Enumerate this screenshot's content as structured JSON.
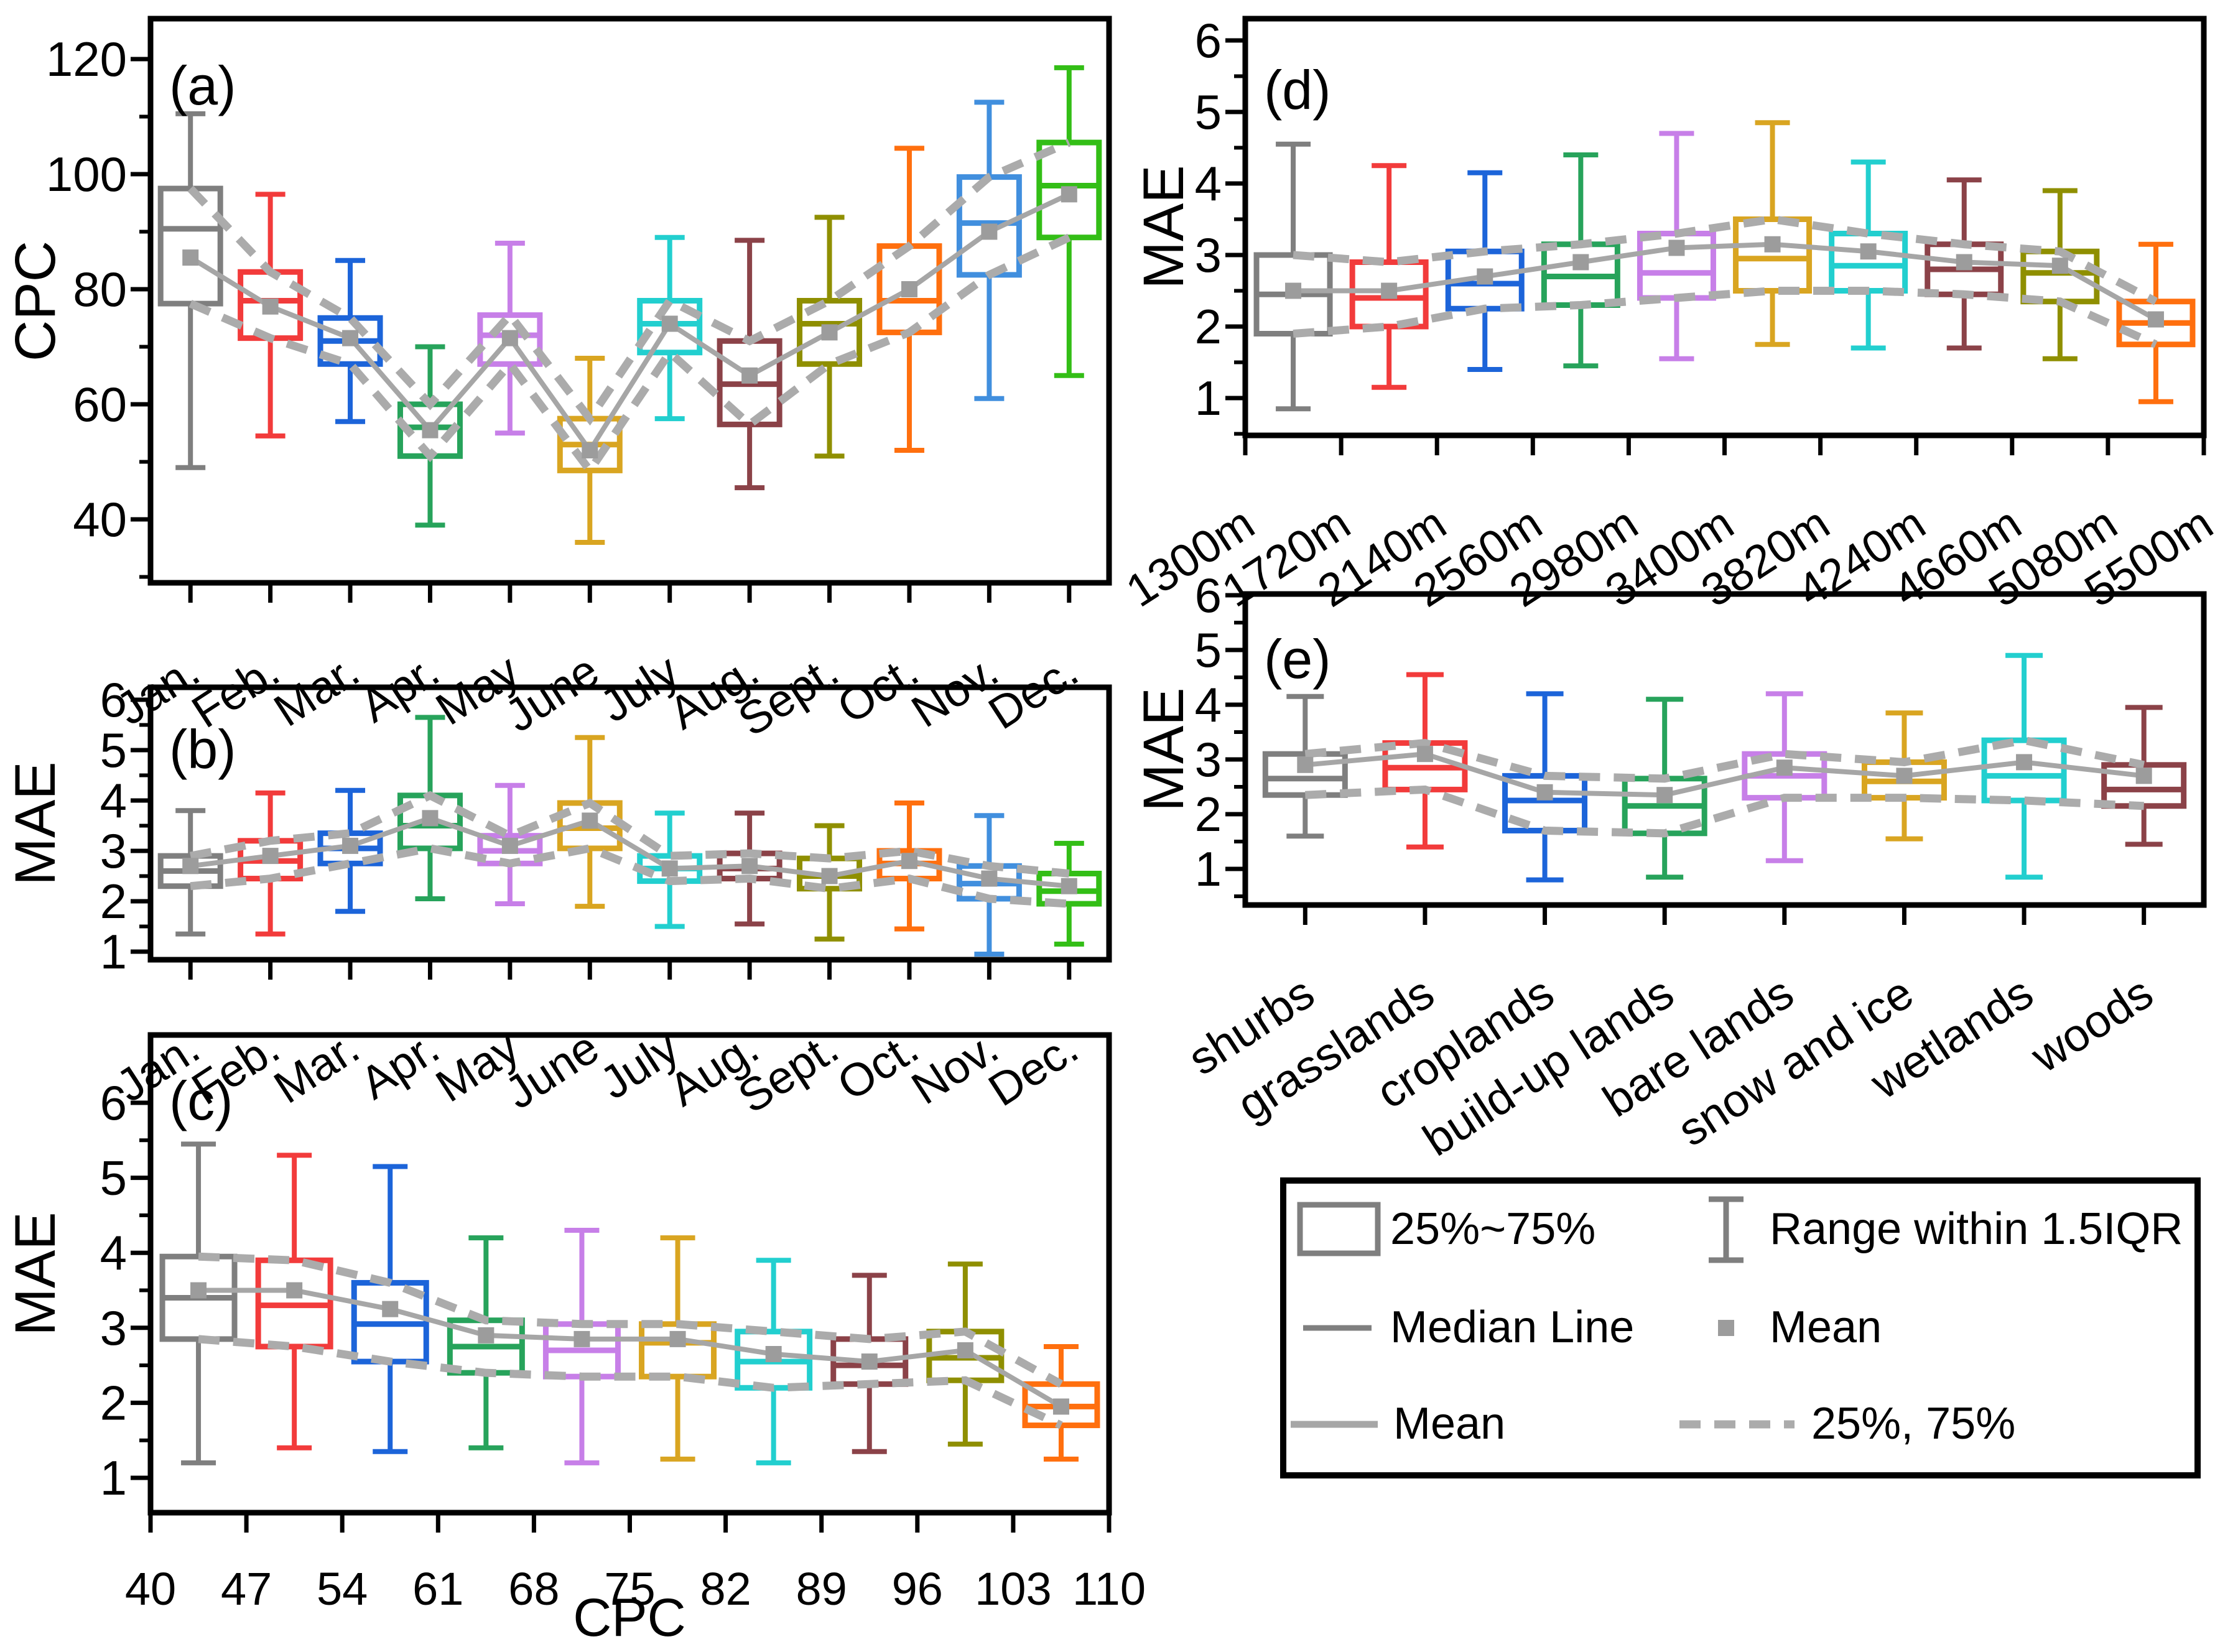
{
  "figure": {
    "panels": [
      "(a)",
      "(b)",
      "(c)",
      "(d)",
      "(e)"
    ],
    "overlay_colors": {
      "mean_line": "#A6A6A6",
      "quartile_dashed": "#ABABAB",
      "mean_marker": "#9C9C9C",
      "median_legend": "#7F7F7F",
      "whisker_legend": "#7F7F7F",
      "box_legend": "#7F7F7F"
    }
  },
  "legend": {
    "items": [
      {
        "symbol": "box",
        "label": "25%~75%"
      },
      {
        "symbol": "range-whisker",
        "label": "Range within 1.5IQR"
      },
      {
        "symbol": "median-line",
        "label": "Median Line"
      },
      {
        "symbol": "mean-marker",
        "label": "Mean"
      },
      {
        "symbol": "mean-line",
        "label": "Mean"
      },
      {
        "symbol": "quartile-dashed",
        "label": "25%, 75%"
      }
    ]
  },
  "chart_data": [
    {
      "panel": "a",
      "type": "box",
      "title": "(a)",
      "ylabel": "CPC",
      "xlabel": "",
      "tick_mode": "center",
      "ylim": [
        29,
        127
      ],
      "yticks": [
        40,
        60,
        80,
        100,
        120
      ],
      "yminor": [
        30,
        50,
        70,
        90,
        110
      ],
      "categories": [
        "Jan.",
        "Feb.",
        "Mar.",
        "Apr.",
        "May",
        "June",
        "July",
        "Aug.",
        "Sept.",
        "Oct.",
        "Nov.",
        "Dec."
      ],
      "colors": [
        "#7F7F7F",
        "#F23B3B",
        "#1C64D9",
        "#27A35B",
        "#C77FE8",
        "#D9A521",
        "#22CFCF",
        "#8B4248",
        "#8F8F00",
        "#FF6F0E",
        "#418FDE",
        "#33BE16"
      ],
      "stats_format": [
        "whisker_low",
        "q1",
        "median",
        "mean",
        "q3",
        "whisker_high"
      ],
      "stats": [
        [
          49,
          77.5,
          90.5,
          85.5,
          97.5,
          110.5
        ],
        [
          54.5,
          71.5,
          78,
          77,
          83,
          96.5
        ],
        [
          57,
          67,
          71,
          71.5,
          75,
          85
        ],
        [
          39,
          51,
          56,
          55.5,
          60,
          70
        ],
        [
          55,
          67,
          72,
          71.5,
          75.5,
          88
        ],
        [
          36,
          48.5,
          53,
          52,
          57.5,
          68
        ],
        [
          57.5,
          69,
          74,
          74,
          78,
          89
        ],
        [
          45.5,
          56.5,
          63.5,
          65,
          71,
          88.5
        ],
        [
          51,
          67,
          74,
          72.5,
          78,
          92.5
        ],
        [
          52,
          72.5,
          78,
          80,
          87.5,
          104.5
        ],
        [
          61,
          82.5,
          91.5,
          90,
          99.5,
          112.5
        ],
        [
          65,
          89,
          98,
          96.5,
          105.5,
          118.5
        ]
      ]
    },
    {
      "panel": "b",
      "type": "box",
      "title": "(b)",
      "ylabel": "MAE",
      "xlabel": "",
      "tick_mode": "center",
      "ylim": [
        0.84,
        6.25
      ],
      "yticks": [
        1,
        2,
        3,
        4,
        5,
        6
      ],
      "yminor": [
        1.5,
        2.5,
        3.5,
        4.5,
        5.5
      ],
      "categories": [
        "Jan.",
        "Feb.",
        "Mar.",
        "Apr.",
        "May",
        "June",
        "July",
        "Aug.",
        "Sept.",
        "Oct.",
        "Nov.",
        "Dec."
      ],
      "colors": [
        "#7F7F7F",
        "#F23B3B",
        "#1C64D9",
        "#27A35B",
        "#C77FE8",
        "#D9A521",
        "#22CFCF",
        "#8B4248",
        "#8F8F00",
        "#FF6F0E",
        "#418FDE",
        "#33BE16"
      ],
      "stats_format": [
        "whisker_low",
        "q1",
        "median",
        "mean",
        "q3",
        "whisker_high"
      ],
      "stats": [
        [
          1.35,
          2.3,
          2.6,
          2.7,
          2.9,
          3.8
        ],
        [
          1.35,
          2.45,
          2.8,
          2.9,
          3.2,
          4.15
        ],
        [
          1.8,
          2.75,
          3.05,
          3.1,
          3.35,
          4.2
        ],
        [
          2.05,
          3.05,
          3.5,
          3.65,
          4.1,
          5.65
        ],
        [
          1.95,
          2.75,
          3.0,
          3.1,
          3.3,
          4.3
        ],
        [
          1.9,
          3.05,
          3.45,
          3.6,
          3.95,
          5.25
        ],
        [
          1.5,
          2.4,
          2.65,
          2.65,
          2.9,
          3.75
        ],
        [
          1.55,
          2.45,
          2.65,
          2.7,
          2.95,
          3.75
        ],
        [
          1.25,
          2.25,
          2.5,
          2.5,
          2.85,
          3.5
        ],
        [
          1.45,
          2.45,
          2.75,
          2.8,
          3.0,
          3.95
        ],
        [
          0.95,
          2.05,
          2.35,
          2.45,
          2.7,
          3.7
        ],
        [
          1.15,
          1.95,
          2.2,
          2.3,
          2.55,
          3.15
        ]
      ]
    },
    {
      "panel": "c",
      "type": "box",
      "title": "(c)",
      "ylabel": "MAE",
      "xlabel": "CPC",
      "tick_mode": "edge",
      "ylim": [
        0.54,
        6.9
      ],
      "yticks": [
        1,
        2,
        3,
        4,
        5,
        6
      ],
      "yminor": [
        1.5,
        2.5,
        3.5,
        4.5,
        5.5
      ],
      "categories": [
        "40",
        "47",
        "54",
        "61",
        "68",
        "75",
        "82",
        "89",
        "96",
        "103",
        "110"
      ],
      "colors": [
        "#7F7F7F",
        "#F23B3B",
        "#1C64D9",
        "#27A35B",
        "#C77FE8",
        "#D9A521",
        "#22CFCF",
        "#8B4248",
        "#8F8F00",
        "#FF6F0E"
      ],
      "stats_format": [
        "whisker_low",
        "q1",
        "median",
        "mean",
        "q3",
        "whisker_high"
      ],
      "stats": [
        [
          1.2,
          2.85,
          3.4,
          3.5,
          3.95,
          5.45
        ],
        [
          1.4,
          2.75,
          3.3,
          3.5,
          3.9,
          5.3
        ],
        [
          1.35,
          2.55,
          3.05,
          3.25,
          3.6,
          5.15
        ],
        [
          1.4,
          2.4,
          2.75,
          2.9,
          3.1,
          4.2
        ],
        [
          1.2,
          2.35,
          2.7,
          2.85,
          3.05,
          4.3
        ],
        [
          1.25,
          2.35,
          2.8,
          2.85,
          3.05,
          4.2
        ],
        [
          1.2,
          2.2,
          2.55,
          2.65,
          2.95,
          3.9
        ],
        [
          1.35,
          2.25,
          2.5,
          2.55,
          2.85,
          3.7
        ],
        [
          1.45,
          2.3,
          2.6,
          2.7,
          2.95,
          3.85
        ],
        [
          1.25,
          1.7,
          1.95,
          1.95,
          2.25,
          2.75
        ]
      ]
    },
    {
      "panel": "d",
      "type": "box",
      "title": "(d)",
      "ylabel": "MAE",
      "xlabel": "",
      "tick_mode": "edge",
      "ylim": [
        0.48,
        6.3
      ],
      "yticks": [
        1,
        2,
        3,
        4,
        5,
        6
      ],
      "yminor": [
        0.5,
        1.5,
        2.5,
        3.5,
        4.5,
        5.5
      ],
      "categories": [
        "1300m",
        "1720m",
        "2140m",
        "2560m",
        "2980m",
        "3400m",
        "3820m",
        "4240m",
        "4660m",
        "5080m",
        "5500m"
      ],
      "colors": [
        "#7F7F7F",
        "#F23B3B",
        "#1C64D9",
        "#27A35B",
        "#C77FE8",
        "#D9A521",
        "#22CFCF",
        "#8B4248",
        "#8F8F00",
        "#FF6F0E"
      ],
      "stats_format": [
        "whisker_low",
        "q1",
        "median",
        "mean",
        "q3",
        "whisker_high"
      ],
      "stats": [
        [
          0.85,
          1.9,
          2.45,
          2.5,
          3.0,
          4.55
        ],
        [
          1.15,
          2.0,
          2.4,
          2.5,
          2.9,
          4.25
        ],
        [
          1.4,
          2.25,
          2.6,
          2.7,
          3.05,
          4.15
        ],
        [
          1.45,
          2.3,
          2.7,
          2.9,
          3.15,
          4.4
        ],
        [
          1.55,
          2.4,
          2.75,
          3.1,
          3.3,
          4.7
        ],
        [
          1.75,
          2.5,
          2.95,
          3.15,
          3.5,
          4.85
        ],
        [
          1.7,
          2.5,
          2.85,
          3.05,
          3.3,
          4.3
        ],
        [
          1.7,
          2.45,
          2.8,
          2.9,
          3.15,
          4.05
        ],
        [
          1.55,
          2.35,
          2.75,
          2.85,
          3.05,
          3.9
        ],
        [
          0.95,
          1.75,
          2.05,
          2.1,
          2.35,
          3.15
        ]
      ]
    },
    {
      "panel": "e",
      "type": "box",
      "title": "(e)",
      "ylabel": "MAE",
      "xlabel": "",
      "tick_mode": "center",
      "ylim": [
        0.34,
        6.02
      ],
      "yticks": [
        1,
        2,
        3,
        4,
        5,
        6
      ],
      "yminor": [
        0.5,
        1.5,
        2.5,
        3.5,
        4.5,
        5.5
      ],
      "categories": [
        "shurbs",
        "grasslands",
        "croplands",
        "build-up lands",
        "bare lands",
        "snow and ice",
        "wetlands",
        "woods"
      ],
      "colors": [
        "#7F7F7F",
        "#F23B3B",
        "#1C64D9",
        "#27A35B",
        "#C77FE8",
        "#D9A521",
        "#22CFCF",
        "#8B4248"
      ],
      "stats_format": [
        "whisker_low",
        "q1",
        "median",
        "mean",
        "q3",
        "whisker_high"
      ],
      "stats": [
        [
          1.6,
          2.35,
          2.65,
          2.9,
          3.1,
          4.15
        ],
        [
          1.4,
          2.45,
          2.85,
          3.1,
          3.3,
          4.55
        ],
        [
          0.8,
          1.7,
          2.25,
          2.4,
          2.7,
          4.2
        ],
        [
          0.85,
          1.65,
          2.15,
          2.35,
          2.65,
          4.1
        ],
        [
          1.15,
          2.3,
          2.7,
          2.85,
          3.1,
          4.2
        ],
        [
          1.55,
          2.3,
          2.6,
          2.7,
          2.95,
          3.85
        ],
        [
          0.85,
          2.25,
          2.7,
          2.95,
          3.35,
          4.9
        ],
        [
          1.45,
          2.15,
          2.45,
          2.7,
          2.9,
          3.95
        ]
      ]
    }
  ]
}
